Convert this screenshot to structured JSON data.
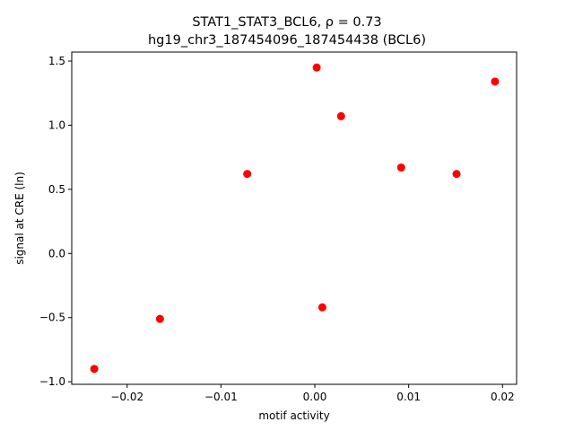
{
  "chart_data": {
    "type": "scatter",
    "title_line1": "STAT1_STAT3_BCL6, ρ = 0.73",
    "title_line2": "hg19_chr3_187454096_187454438 (BCL6)",
    "xlabel": "motif activity",
    "ylabel": "signal at CRE (ln)",
    "xlim": [
      -0.0259,
      0.0215
    ],
    "ylim": [
      -1.02,
      1.57
    ],
    "xticks": [
      -0.02,
      -0.01,
      0.0,
      0.01,
      0.02
    ],
    "xtick_labels": [
      "−0.02",
      "−0.01",
      "0.00",
      "0.01",
      "0.02"
    ],
    "yticks": [
      -1.0,
      -0.5,
      0.0,
      0.5,
      1.0,
      1.5
    ],
    "ytick_labels": [
      "−1.0",
      "−0.5",
      "0.0",
      "0.5",
      "1.0",
      "1.5"
    ],
    "grid": false,
    "marker_color": "#ff0000",
    "points": [
      {
        "x": -0.0235,
        "y": -0.9
      },
      {
        "x": -0.0165,
        "y": -0.51
      },
      {
        "x": -0.0072,
        "y": 0.62
      },
      {
        "x": 0.0002,
        "y": 1.45
      },
      {
        "x": 0.0008,
        "y": -0.42
      },
      {
        "x": 0.0028,
        "y": 1.07
      },
      {
        "x": 0.0092,
        "y": 0.67
      },
      {
        "x": 0.0151,
        "y": 0.62
      },
      {
        "x": 0.0192,
        "y": 1.34
      }
    ]
  }
}
